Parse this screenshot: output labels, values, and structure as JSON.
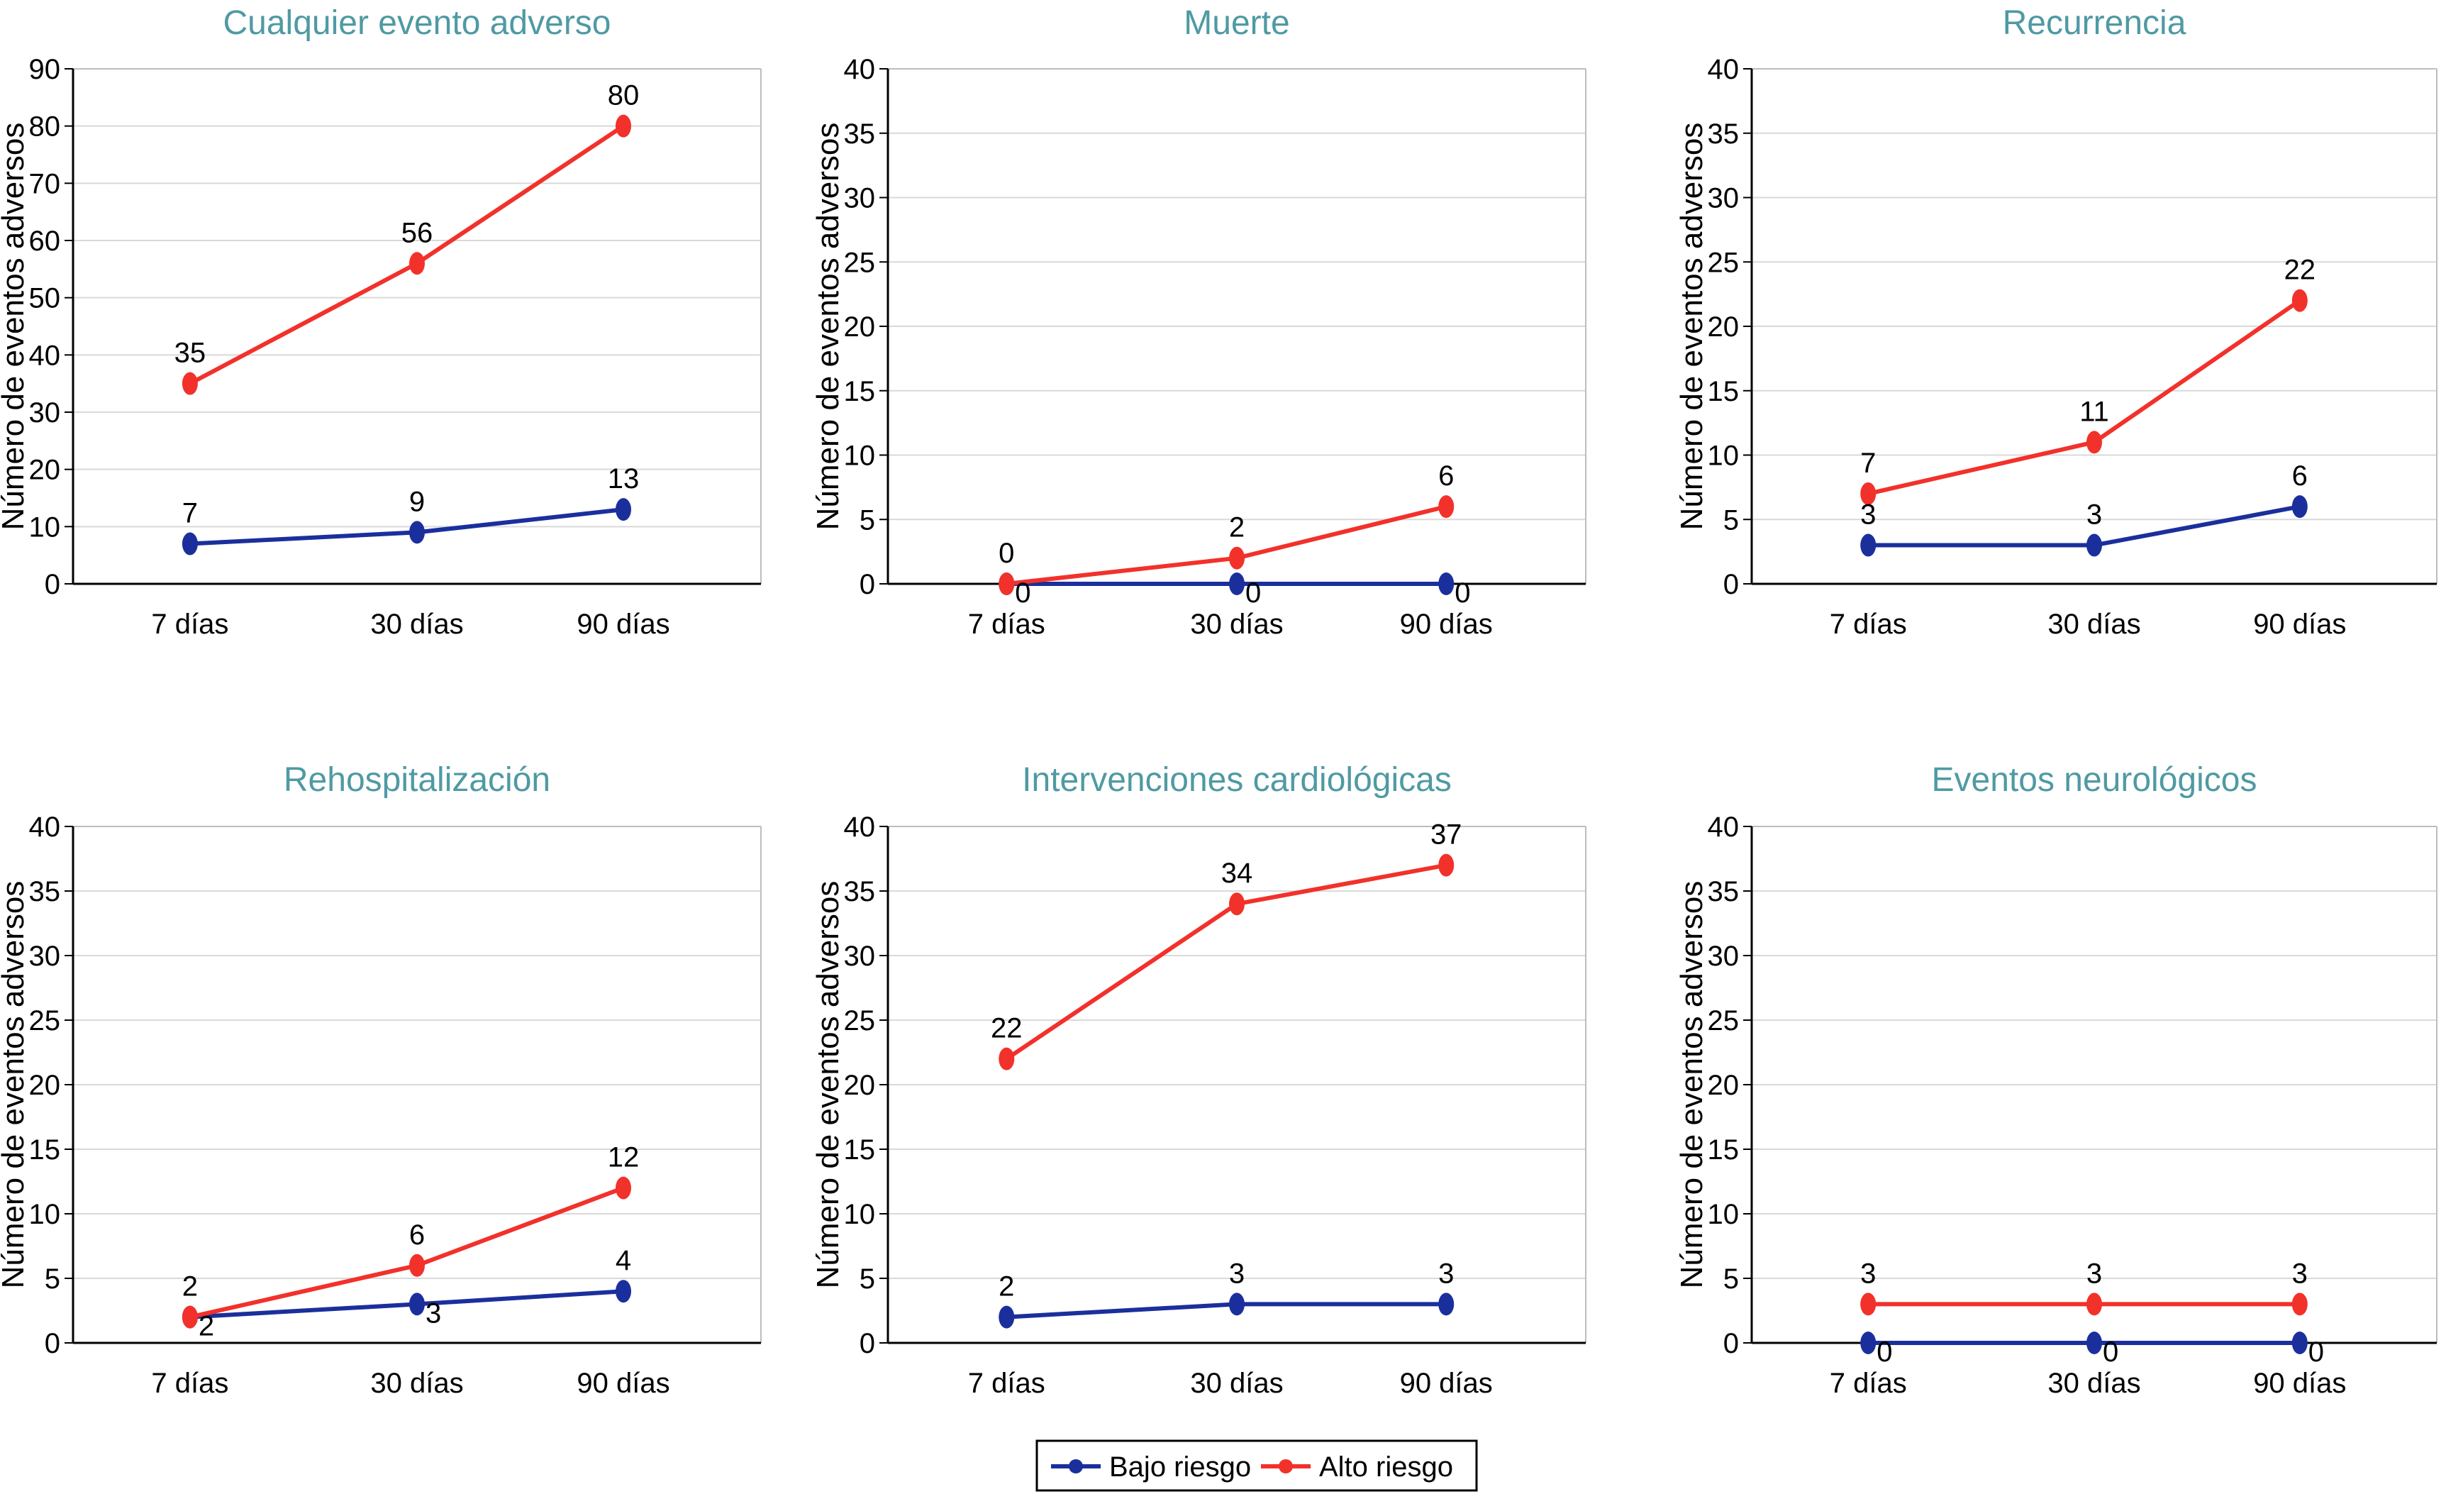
{
  "colors": {
    "bajo": "#1b2f9c",
    "alto": "#f2312b",
    "title": "#4f9aa3",
    "grid": "#d9d9d9",
    "axis": "#000000",
    "frame": "#bdbdbd"
  },
  "legend": {
    "items": [
      {
        "key": "bajo",
        "label": "Bajo riesgo"
      },
      {
        "key": "alto",
        "label": "Alto riesgo"
      }
    ]
  },
  "chart_data": [
    {
      "type": "line",
      "title": "Cualquier evento adverso",
      "ylabel": "Número de eventos adversos",
      "categories": [
        "7 días",
        "30 días",
        "90 días"
      ],
      "ylim": [
        0,
        90
      ],
      "yticks": [
        "0",
        "10",
        "20",
        "30",
        "40",
        "50",
        "60",
        "70",
        "80",
        "90"
      ],
      "grid": true,
      "series": [
        {
          "name": "Bajo riesgo",
          "values": [
            7,
            9,
            13
          ]
        },
        {
          "name": "Alto riesgo",
          "values": [
            35,
            56,
            80
          ]
        }
      ]
    },
    {
      "type": "line",
      "title": "Muerte",
      "ylabel": "Número de eventos adversos",
      "categories": [
        "7 días",
        "30 días",
        "90 días"
      ],
      "ylim": [
        0,
        40
      ],
      "yticks": [
        "0",
        "5",
        "10",
        "15",
        "20",
        "25",
        "30",
        "35",
        "40"
      ],
      "grid": true,
      "series": [
        {
          "name": "Bajo riesgo",
          "values": [
            0,
            0,
            0
          ]
        },
        {
          "name": "Alto riesgo",
          "values": [
            0,
            2,
            6
          ]
        }
      ]
    },
    {
      "type": "line",
      "title": "Recurrencia",
      "ylabel": "Número de eventos adversos",
      "categories": [
        "7 días",
        "30 días",
        "90 días"
      ],
      "ylim": [
        0,
        40
      ],
      "yticks": [
        "0",
        "5",
        "10",
        "15",
        "20",
        "25",
        "30",
        "35",
        "40"
      ],
      "grid": true,
      "series": [
        {
          "name": "Bajo riesgo",
          "values": [
            3,
            3,
            6
          ]
        },
        {
          "name": "Alto riesgo",
          "values": [
            7,
            11,
            22
          ]
        }
      ]
    },
    {
      "type": "line",
      "title": "Rehospitalización",
      "ylabel": "Número de eventos adversos",
      "categories": [
        "7 días",
        "30 días",
        "90 días"
      ],
      "ylim": [
        0,
        40
      ],
      "yticks": [
        "0",
        "5",
        "10",
        "15",
        "20",
        "25",
        "30",
        "35",
        "40"
      ],
      "grid": true,
      "series": [
        {
          "name": "Bajo riesgo",
          "values": [
            2,
            3,
            4
          ]
        },
        {
          "name": "Alto riesgo",
          "values": [
            2,
            6,
            12
          ]
        }
      ]
    },
    {
      "type": "line",
      "title": "Intervenciones cardiológicas",
      "ylabel": "Número de eventos adversos",
      "categories": [
        "7 días",
        "30 días",
        "90 días"
      ],
      "ylim": [
        0,
        40
      ],
      "yticks": [
        "0",
        "5",
        "10",
        "15",
        "20",
        "25",
        "30",
        "35",
        "40"
      ],
      "grid": true,
      "series": [
        {
          "name": "Bajo riesgo",
          "values": [
            2,
            3,
            3
          ]
        },
        {
          "name": "Alto riesgo",
          "values": [
            22,
            34,
            37
          ]
        }
      ]
    },
    {
      "type": "line",
      "title": "Eventos neurológicos",
      "ylabel": "Número de eventos adversos",
      "categories": [
        "7 días",
        "30 días",
        "90 días"
      ],
      "ylim": [
        0,
        40
      ],
      "yticks": [
        "0",
        "5",
        "10",
        "15",
        "20",
        "25",
        "30",
        "35",
        "40"
      ],
      "grid": true,
      "series": [
        {
          "name": "Bajo riesgo",
          "values": [
            0,
            0,
            0
          ]
        },
        {
          "name": "Alto riesgo",
          "values": [
            3,
            3,
            3
          ]
        }
      ]
    }
  ]
}
